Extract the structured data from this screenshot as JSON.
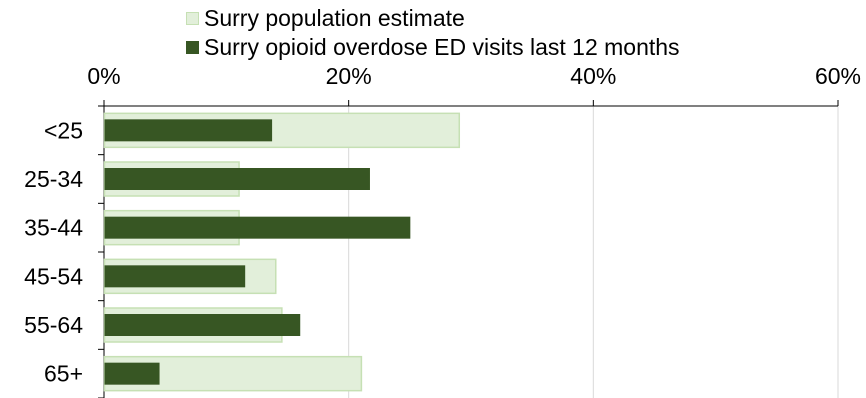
{
  "colors": {
    "population_fill": "#e2efda",
    "population_stroke": "#c6e0b4",
    "ed_visits_fill": "#375623",
    "axis": "#000000",
    "gridline": "#d9d9d9",
    "text": "#000000"
  },
  "chart_data": {
    "type": "bar",
    "orientation": "horizontal",
    "title": "",
    "xlabel": "",
    "ylabel": "",
    "xlim": [
      0,
      0.6
    ],
    "x_tick_labels": [
      "0%",
      "20%",
      "40%",
      "60%"
    ],
    "x_tick_values": [
      0,
      0.2,
      0.4,
      0.6
    ],
    "x_axis_position": "top",
    "grid": true,
    "legend_position": "top",
    "categories": [
      "<25",
      "25-34",
      "35-44",
      "45-54",
      "55-64",
      "65+"
    ],
    "series": [
      {
        "name": "Surry population estimate",
        "values": [
          0.29,
          0.11,
          0.11,
          0.14,
          0.145,
          0.21
        ]
      },
      {
        "name": "Surry opioid overdose ED visits last 12 months",
        "values": [
          0.137,
          0.217,
          0.25,
          0.115,
          0.16,
          0.045
        ]
      }
    ]
  }
}
